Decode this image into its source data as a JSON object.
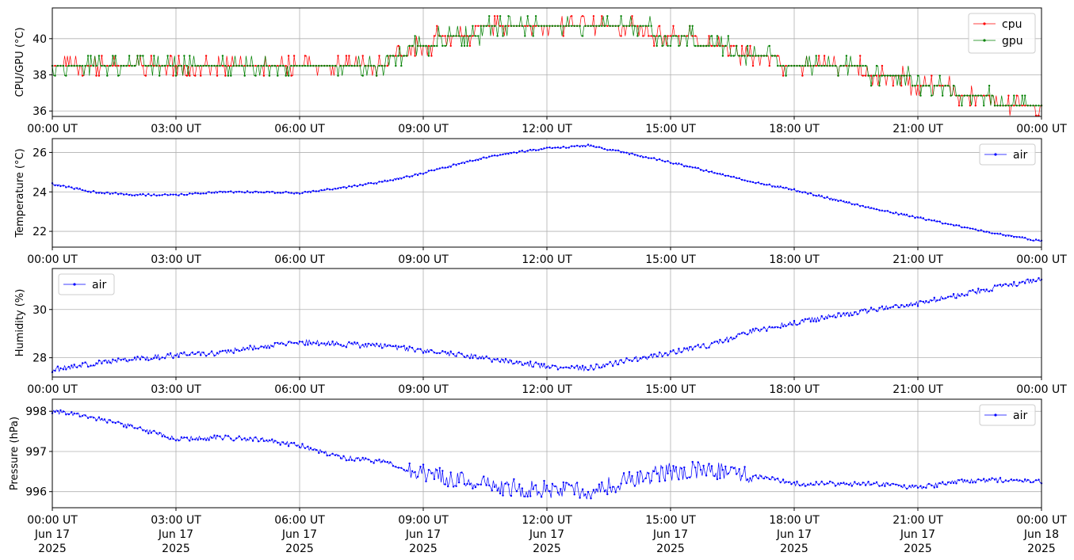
{
  "x_axis": {
    "tick_labels": [
      "00:00 UT",
      "03:00 UT",
      "06:00 UT",
      "09:00 UT",
      "12:00 UT",
      "15:00 UT",
      "18:00 UT",
      "21:00 UT",
      "00:00 UT"
    ],
    "date_lines": [
      "Jun 17",
      "Jun 17",
      "Jun 17",
      "Jun 17",
      "Jun 17",
      "Jun 17",
      "Jun 17",
      "Jun 17",
      "Jun 18"
    ],
    "year_lines": [
      "2025",
      "2025",
      "2025",
      "2025",
      "2025",
      "2025",
      "2025",
      "2025",
      "2025"
    ]
  },
  "chart_data": [
    {
      "type": "line",
      "ylabel": "CPU/GPU (°C)",
      "ylim": [
        35.7,
        41.7
      ],
      "yticks": [
        36,
        38,
        40
      ],
      "xlim": [
        "2025-06-17 00:00",
        "2025-06-18 00:00"
      ],
      "grid": true,
      "legend_position": "upper right",
      "x": [
        "2025-06-17 00:00",
        "2025-06-17 01:00",
        "2025-06-17 02:00",
        "2025-06-17 03:00",
        "2025-06-17 04:00",
        "2025-06-17 05:00",
        "2025-06-17 06:00",
        "2025-06-17 07:00",
        "2025-06-17 08:00",
        "2025-06-17 09:00",
        "2025-06-17 10:00",
        "2025-06-17 11:00",
        "2025-06-17 12:00",
        "2025-06-17 13:00",
        "2025-06-17 14:00",
        "2025-06-17 15:00",
        "2025-06-17 16:00",
        "2025-06-17 17:00",
        "2025-06-17 18:00",
        "2025-06-17 19:00",
        "2025-06-17 20:00",
        "2025-06-17 21:00",
        "2025-06-17 22:00",
        "2025-06-17 23:00",
        "2025-06-18 00:00"
      ],
      "series": [
        {
          "name": "cpu",
          "color": "#ff0000",
          "values": [
            38.7,
            38.6,
            38.6,
            38.6,
            38.6,
            38.6,
            38.6,
            38.6,
            38.6,
            39.7,
            40.3,
            40.8,
            40.8,
            40.8,
            40.6,
            40.2,
            39.7,
            39.1,
            38.6,
            38.6,
            38.0,
            37.6,
            37.0,
            36.5,
            36.5
          ]
        },
        {
          "name": "gpu",
          "color": "#008000",
          "values": [
            38.6,
            38.6,
            38.6,
            38.6,
            38.6,
            38.6,
            38.6,
            38.6,
            38.7,
            39.7,
            40.2,
            40.8,
            40.8,
            40.8,
            40.7,
            40.2,
            39.6,
            39.0,
            38.6,
            38.5,
            38.1,
            37.6,
            37.0,
            36.5,
            36.5
          ]
        }
      ]
    },
    {
      "type": "line",
      "ylabel": "Temperature (°C)",
      "ylim": [
        21.2,
        26.7
      ],
      "yticks": [
        22,
        24,
        26
      ],
      "xlim": [
        "2025-06-17 00:00",
        "2025-06-18 00:00"
      ],
      "grid": true,
      "legend_position": "upper right",
      "x": [
        "2025-06-17 00:00",
        "2025-06-17 01:00",
        "2025-06-17 02:00",
        "2025-06-17 03:00",
        "2025-06-17 04:00",
        "2025-06-17 05:00",
        "2025-06-17 06:00",
        "2025-06-17 07:00",
        "2025-06-17 08:00",
        "2025-06-17 09:00",
        "2025-06-17 10:00",
        "2025-06-17 11:00",
        "2025-06-17 12:00",
        "2025-06-17 13:00",
        "2025-06-17 14:00",
        "2025-06-17 15:00",
        "2025-06-17 16:00",
        "2025-06-17 17:00",
        "2025-06-17 18:00",
        "2025-06-17 19:00",
        "2025-06-17 20:00",
        "2025-06-17 21:00",
        "2025-06-17 22:00",
        "2025-06-17 23:00",
        "2025-06-18 00:00"
      ],
      "series": [
        {
          "name": "air",
          "color": "#0000ff",
          "values": [
            24.4,
            24.0,
            23.85,
            23.85,
            24.0,
            24.0,
            23.95,
            24.2,
            24.5,
            24.95,
            25.5,
            25.95,
            26.2,
            26.35,
            25.95,
            25.5,
            25.0,
            24.5,
            24.1,
            23.6,
            23.1,
            22.7,
            22.25,
            21.85,
            21.5
          ]
        }
      ]
    },
    {
      "type": "line",
      "ylabel": "Humidity (%)",
      "ylim": [
        27.2,
        31.7
      ],
      "yticks": [
        28,
        30
      ],
      "xlim": [
        "2025-06-17 00:00",
        "2025-06-18 00:00"
      ],
      "grid": true,
      "legend_position": "upper left",
      "x": [
        "2025-06-17 00:00",
        "2025-06-17 01:00",
        "2025-06-17 02:00",
        "2025-06-17 03:00",
        "2025-06-17 04:00",
        "2025-06-17 05:00",
        "2025-06-17 06:00",
        "2025-06-17 07:00",
        "2025-06-17 08:00",
        "2025-06-17 09:00",
        "2025-06-17 10:00",
        "2025-06-17 11:00",
        "2025-06-17 12:00",
        "2025-06-17 13:00",
        "2025-06-17 14:00",
        "2025-06-17 15:00",
        "2025-06-17 16:00",
        "2025-06-17 17:00",
        "2025-06-17 18:00",
        "2025-06-17 19:00",
        "2025-06-17 20:00",
        "2025-06-17 21:00",
        "2025-06-17 22:00",
        "2025-06-17 23:00",
        "2025-06-18 00:00"
      ],
      "series": [
        {
          "name": "air",
          "color": "#0000ff",
          "values": [
            27.5,
            27.75,
            27.95,
            28.1,
            28.2,
            28.45,
            28.65,
            28.55,
            28.5,
            28.3,
            28.1,
            27.85,
            27.65,
            27.55,
            27.9,
            28.2,
            28.55,
            29.1,
            29.45,
            29.75,
            30.0,
            30.25,
            30.6,
            30.95,
            31.25
          ]
        }
      ]
    },
    {
      "type": "line",
      "ylabel": "Pressure (hPa)",
      "ylim": [
        995.6,
        998.3
      ],
      "yticks": [
        996,
        997,
        998
      ],
      "xlim": [
        "2025-06-17 00:00",
        "2025-06-18 00:00"
      ],
      "grid": true,
      "legend_position": "upper right",
      "x": [
        "2025-06-17 00:00",
        "2025-06-17 01:00",
        "2025-06-17 02:00",
        "2025-06-17 03:00",
        "2025-06-17 04:00",
        "2025-06-17 05:00",
        "2025-06-17 06:00",
        "2025-06-17 07:00",
        "2025-06-17 08:00",
        "2025-06-17 09:00",
        "2025-06-17 10:00",
        "2025-06-17 11:00",
        "2025-06-17 12:00",
        "2025-06-17 13:00",
        "2025-06-17 14:00",
        "2025-06-17 15:00",
        "2025-06-17 16:00",
        "2025-06-17 17:00",
        "2025-06-17 18:00",
        "2025-06-17 19:00",
        "2025-06-17 20:00",
        "2025-06-17 21:00",
        "2025-06-17 22:00",
        "2025-06-17 23:00",
        "2025-06-18 00:00"
      ],
      "series": [
        {
          "name": "air",
          "color": "#0000ff",
          "values": [
            998.0,
            997.85,
            997.6,
            997.3,
            997.35,
            997.3,
            997.15,
            996.85,
            996.75,
            996.45,
            996.25,
            996.1,
            996.05,
            996.0,
            996.3,
            996.5,
            996.55,
            996.4,
            996.2,
            996.2,
            996.2,
            996.1,
            996.25,
            996.3,
            996.25
          ]
        }
      ]
    }
  ]
}
